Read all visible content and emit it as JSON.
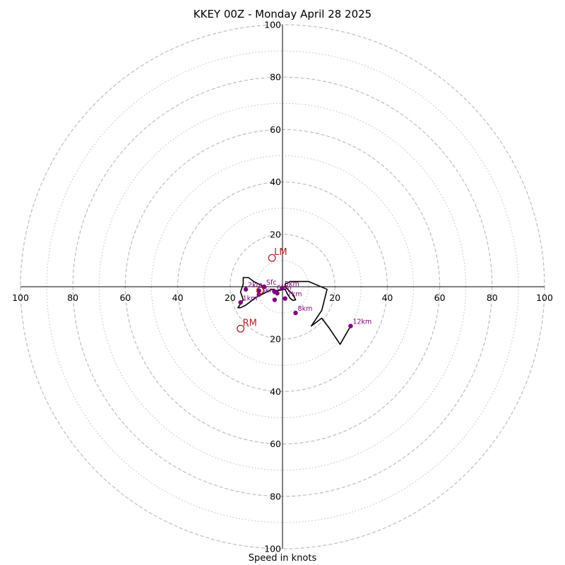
{
  "chart_data": {
    "type": "hodograph",
    "title": "KKEY 00Z - Monday April 28 2025",
    "xlabel": "Speed in knots",
    "range": [
      -100,
      100
    ],
    "ring_major_step": 20,
    "ring_minor_step": 10,
    "tick_labels": {
      "x": [
        "100",
        "80",
        "60",
        "40",
        "20",
        "20",
        "40",
        "60",
        "80",
        "100"
      ],
      "y": [
        "100",
        "80",
        "60",
        "40",
        "20",
        "20",
        "40",
        "60",
        "80",
        "100"
      ]
    },
    "x_tick_values": [
      -100,
      -80,
      -60,
      -40,
      -20,
      20,
      40,
      60,
      80,
      100
    ],
    "y_tick_values": [
      100,
      80,
      60,
      40,
      20,
      -20,
      -40,
      -60,
      -80,
      -100
    ],
    "colors": {
      "trace": "#000000",
      "heights": "#800080",
      "storm_motion": "#b22222",
      "grid": "#bdbdbd"
    },
    "trace": [
      [
        -7,
        0
      ],
      [
        -9,
        1
      ],
      [
        -11,
        2
      ],
      [
        -13,
        3.5
      ],
      [
        -15,
        3.5
      ],
      [
        -15,
        1
      ],
      [
        -16,
        -2
      ],
      [
        -15,
        -5
      ],
      [
        -17,
        -8
      ],
      [
        -16,
        -8
      ],
      [
        -14,
        -7
      ],
      [
        -10,
        -4
      ],
      [
        -8,
        -3
      ],
      [
        -6,
        -2
      ],
      [
        -4,
        -1
      ],
      [
        -2,
        -1.5
      ],
      [
        1,
        -1
      ],
      [
        2,
        -3
      ],
      [
        3,
        -4.5
      ],
      [
        4,
        -5.2
      ],
      [
        5,
        -5
      ],
      [
        4,
        -3
      ],
      [
        1,
        0
      ],
      [
        1,
        1
      ],
      [
        3,
        2
      ],
      [
        10,
        2
      ],
      [
        17,
        -1
      ],
      [
        15,
        -9
      ],
      [
        11,
        -15
      ],
      [
        15,
        -12
      ],
      [
        18,
        -16
      ],
      [
        22,
        -22
      ],
      [
        26,
        -15
      ]
    ],
    "heights": [
      {
        "label": "Sfc",
        "u": -7,
        "v": 0
      },
      {
        "label": "2km",
        "u": -14,
        "v": -1
      },
      {
        "label": "1km",
        "u": -16,
        "v": -6
      },
      {
        "label": "3km",
        "u": -9,
        "v": -3
      },
      {
        "label": "6km",
        "u": -3,
        "v": -2
      },
      {
        "label": "5km",
        "u": 0,
        "v": -0.5
      },
      {
        "label": "7km",
        "u": 1,
        "v": -4.5
      },
      {
        "label": "8km",
        "u": 5,
        "v": -10
      },
      {
        "label": "12km",
        "u": 26,
        "v": -15
      },
      {
        "label": "",
        "u": -2,
        "v": -2.5
      },
      {
        "label": "",
        "u": -9,
        "v": -1.5
      },
      {
        "label": "",
        "u": -3,
        "v": -5
      }
    ],
    "storm_motion": [
      {
        "label": "LM",
        "u": -4,
        "v": 11
      },
      {
        "label": "RM",
        "u": -16,
        "v": -16
      },
      {
        "label": "",
        "u": -8.5,
        "v": -1.5
      }
    ]
  }
}
